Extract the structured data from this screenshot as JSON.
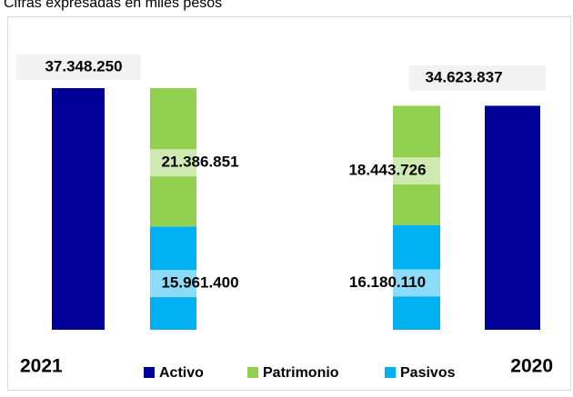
{
  "chart_data": {
    "type": "bar",
    "title": "Cifras expresadas en miles pesos",
    "categories": [
      "2021",
      "2020"
    ],
    "series": [
      {
        "name": "Activo",
        "color": "#000099",
        "values": [
          37348250,
          34623837
        ],
        "value_labels": [
          "37.348.250",
          "34.623.837"
        ]
      },
      {
        "name": "Patrimonio",
        "color": "#92d050",
        "values": [
          21386851,
          18443726
        ],
        "value_labels": [
          "21.386.851",
          "18.443.726"
        ]
      },
      {
        "name": "Pasivos",
        "color": "#00b0f0",
        "values": [
          15961400,
          16180110
        ],
        "value_labels": [
          "15.961.400",
          "16.180.110"
        ]
      }
    ]
  }
}
